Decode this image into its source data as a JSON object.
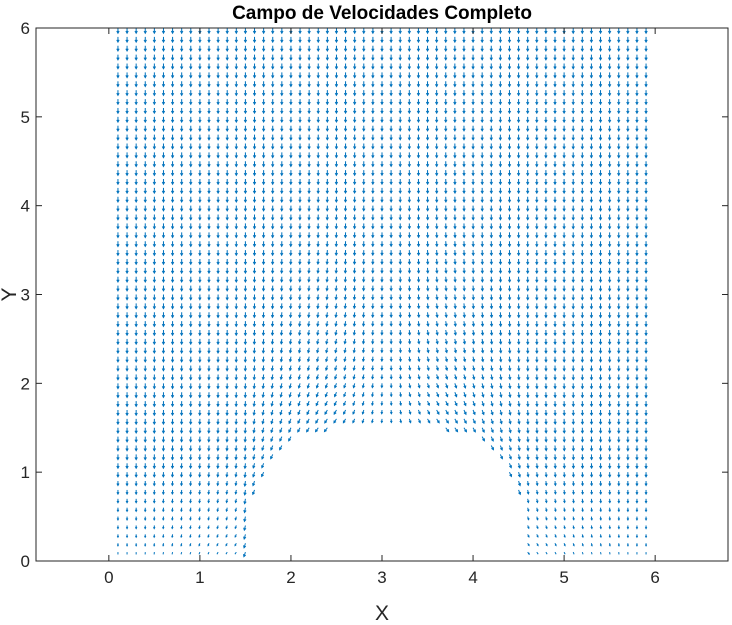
{
  "chart_data": {
    "type": "quiver",
    "title": "Campo de Velocidades Completo",
    "xlabel": "X",
    "ylabel": "Y",
    "xlim": [
      -0.8,
      6.8
    ],
    "ylim": [
      0,
      6
    ],
    "xticks": [
      0,
      1,
      2,
      3,
      4,
      5,
      6
    ],
    "yticks": [
      0,
      1,
      2,
      3,
      4,
      5,
      6
    ],
    "grid": false,
    "box": true,
    "color": "#0072BD",
    "field": {
      "x_start": 0.1,
      "x_end": 5.9,
      "nx": 59,
      "y_start": 0.1,
      "y_end": 6.0,
      "ny": 60,
      "free_stream": {
        "u": 0,
        "v": -1
      },
      "obstacle": {
        "shape": "rounded-bump",
        "x_range": [
          1.5,
          4.6
        ],
        "top_y": 1.5,
        "flat_top_range": [
          2.6,
          3.6
        ]
      }
    }
  }
}
